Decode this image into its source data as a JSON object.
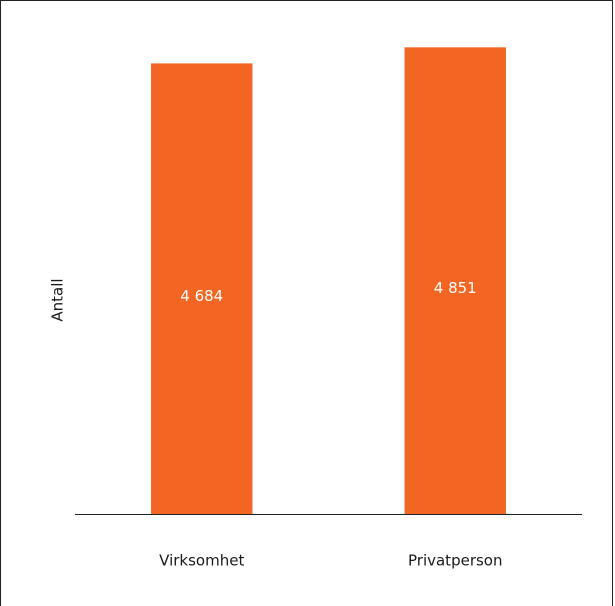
{
  "chart_data": {
    "type": "bar",
    "y_label": "Antall",
    "categories": [
      "Virksomhet",
      "Privatperson"
    ],
    "values": [
      4684,
      4851
    ],
    "value_labels": [
      "4 684",
      "4 851"
    ],
    "color": "#f26522",
    "ylim": [
      0,
      5000
    ]
  }
}
